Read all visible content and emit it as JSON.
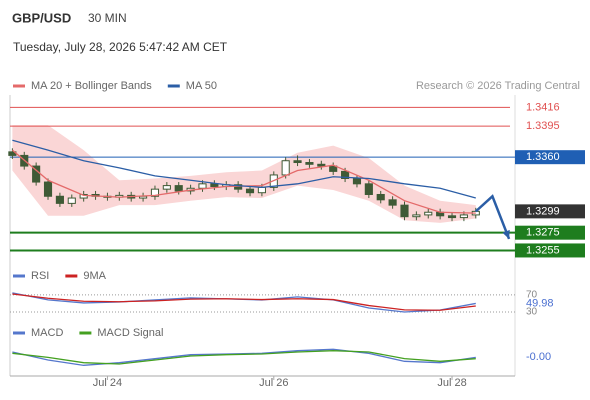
{
  "header": {
    "symbol": "GBP/USD",
    "interval": "30 MIN",
    "timestamp": "Tuesday, July 28, 2026 5:47:42 AM CET",
    "source": "Research © 2026 Trading Central"
  },
  "chart_data": [
    {
      "type": "candlestick",
      "legend": "top-left",
      "candle_color": "#3f5a36",
      "xlim": [
        -0.2,
        42.3
      ],
      "ylim": [
        1.3242,
        1.343
      ],
      "xticks": [
        {
          "value": 8,
          "label": "Jul 24"
        },
        {
          "value": 22,
          "label": "Jul 26"
        },
        {
          "value": 37,
          "label": "Jul 28"
        }
      ],
      "open": [
        1.3366,
        1.3362,
        1.335,
        1.3332,
        1.3316,
        1.3308,
        1.3314,
        1.3318,
        1.3316,
        1.3315,
        1.3317,
        1.3314,
        1.3316,
        1.3324,
        1.3328,
        1.3322,
        1.3325,
        1.333,
        1.3327,
        1.3329,
        1.3324,
        1.332,
        1.3326,
        1.334,
        1.3356,
        1.3354,
        1.3352,
        1.335,
        1.3344,
        1.3336,
        1.333,
        1.3318,
        1.3312,
        1.3306,
        1.3293,
        1.3295,
        1.3298,
        1.3294,
        1.3292,
        1.3295
      ],
      "high": [
        1.337,
        1.3366,
        1.3354,
        1.3336,
        1.332,
        1.3318,
        1.3322,
        1.3322,
        1.332,
        1.3321,
        1.3321,
        1.332,
        1.3328,
        1.3332,
        1.3332,
        1.3329,
        1.3334,
        1.3334,
        1.3333,
        1.3333,
        1.3328,
        1.333,
        1.3344,
        1.336,
        1.3362,
        1.3358,
        1.3356,
        1.3354,
        1.3348,
        1.334,
        1.3334,
        1.3322,
        1.3316,
        1.331,
        1.3299,
        1.3302,
        1.3302,
        1.3298,
        1.3299,
        1.3303
      ],
      "low": [
        1.3358,
        1.3346,
        1.3328,
        1.3312,
        1.3304,
        1.3304,
        1.331,
        1.3312,
        1.3311,
        1.3311,
        1.331,
        1.331,
        1.3312,
        1.332,
        1.3318,
        1.3318,
        1.3321,
        1.3323,
        1.3323,
        1.332,
        1.3316,
        1.3316,
        1.3322,
        1.3336,
        1.335,
        1.3348,
        1.3346,
        1.334,
        1.3332,
        1.3326,
        1.3314,
        1.3308,
        1.3302,
        1.3289,
        1.3289,
        1.3291,
        1.329,
        1.3288,
        1.3288,
        1.3291
      ],
      "close": [
        1.3362,
        1.335,
        1.3332,
        1.3316,
        1.3308,
        1.3314,
        1.3318,
        1.3316,
        1.3315,
        1.3317,
        1.3314,
        1.3316,
        1.3324,
        1.3328,
        1.3322,
        1.3325,
        1.333,
        1.3327,
        1.3329,
        1.3324,
        1.332,
        1.3326,
        1.334,
        1.3356,
        1.3354,
        1.3352,
        1.335,
        1.3344,
        1.3336,
        1.333,
        1.3318,
        1.3312,
        1.3306,
        1.3293,
        1.3295,
        1.3298,
        1.3294,
        1.3292,
        1.3295,
        1.3299
      ],
      "series": [
        {
          "name": "MA 20 + Bollinger Bands",
          "color": "#e46a6a",
          "band_color": "#fad6d6",
          "x": [
            0,
            3,
            6,
            9,
            12,
            15,
            18,
            21,
            24,
            27,
            30,
            33,
            36,
            39
          ],
          "values": [
            1.3368,
            1.3334,
            1.3317,
            1.3315,
            1.3317,
            1.3323,
            1.3327,
            1.3328,
            1.3345,
            1.3351,
            1.3334,
            1.3311,
            1.3298,
            1.3297
          ],
          "upper": [
            1.3396,
            1.3396,
            1.3368,
            1.3334,
            1.3336,
            1.3339,
            1.3343,
            1.3345,
            1.3365,
            1.3373,
            1.3359,
            1.3328,
            1.3311,
            1.3306
          ],
          "lower": [
            1.3345,
            1.3294,
            1.3294,
            1.3306,
            1.3306,
            1.3311,
            1.3315,
            1.3314,
            1.3328,
            1.3323,
            1.3311,
            1.3289,
            1.3286,
            1.3291
          ]
        },
        {
          "name": "MA 50",
          "color": "#2b5ea6",
          "x": [
            0,
            3,
            6,
            9,
            12,
            15,
            18,
            21,
            24,
            27,
            30,
            33,
            36,
            39
          ],
          "values": [
            1.3379,
            1.3368,
            1.3356,
            1.3348,
            1.3339,
            1.3334,
            1.3329,
            1.3326,
            1.333,
            1.3338,
            1.3336,
            1.333,
            1.3325,
            1.3314
          ]
        }
      ],
      "levels": [
        {
          "value": 1.3416,
          "color": "#e05050",
          "kind": "resistance"
        },
        {
          "value": 1.3395,
          "color": "#e05050",
          "kind": "resistance"
        },
        {
          "value": 1.336,
          "label": "1.3360",
          "color": "#1f5fb4",
          "kind": "pivot"
        },
        {
          "value": 1.3299,
          "color": "#333333",
          "kind": "current"
        },
        {
          "value": 1.3275,
          "color": "#1e7d1e",
          "kind": "support"
        },
        {
          "value": 1.3255,
          "color": "#1e7d1e",
          "kind": "support"
        }
      ],
      "forecast": {
        "color": "#2b5ea6",
        "x": [
          39,
          40.4,
          41.8
        ],
        "values": [
          1.3299,
          1.3316,
          1.3268
        ]
      }
    },
    {
      "type": "line",
      "legend": "top-left",
      "ylim": [
        16,
        86
      ],
      "yticks": [
        70,
        30
      ],
      "current": 49.98,
      "current_color": "#4a6fd0",
      "series": [
        {
          "name": "RSI",
          "color": "#5577cc",
          "x": [
            0,
            3,
            6,
            9,
            12,
            15,
            18,
            21,
            24,
            27,
            30,
            33,
            36,
            39
          ],
          "values": [
            74.7,
            58.2,
            51.2,
            53.5,
            58.2,
            62.9,
            60.6,
            58.2,
            65.3,
            58.2,
            39.4,
            30,
            34.7,
            49.98
          ]
        },
        {
          "name": "9MA",
          "color": "#cc2222",
          "x": [
            0,
            3,
            6,
            9,
            12,
            15,
            18,
            21,
            24,
            27,
            30,
            33,
            36,
            39
          ],
          "values": [
            72,
            62,
            55,
            54,
            56,
            60,
            61,
            59,
            61,
            59,
            45,
            35,
            34,
            44
          ]
        }
      ]
    },
    {
      "type": "line",
      "legend": "top-left",
      "ylim": [
        -0.0012,
        0.0012
      ],
      "current": {
        "value": -0.0001,
        "label": "-0.00"
      },
      "current_color": "#4a6fd0",
      "series": [
        {
          "name": "MACD",
          "color": "#5577cc",
          "x": [
            0,
            3,
            6,
            9,
            12,
            15,
            18,
            21,
            24,
            27,
            30,
            33,
            36,
            39
          ],
          "values": [
            0.0003,
            -0.0003,
            -0.0007,
            -0.0005,
            -0.0002,
            0.0001,
            0.00015,
            0.0002,
            0.0004,
            0.0005,
            0.0002,
            -0.0004,
            -0.0005,
            -0.0001
          ]
        },
        {
          "name": "MACD Signal",
          "color": "#44a020",
          "x": [
            0,
            3,
            6,
            9,
            12,
            15,
            18,
            21,
            24,
            27,
            30,
            33,
            36,
            39
          ],
          "values": [
            0.0002,
            -0.0001,
            -0.0005,
            -0.0006,
            -0.0003,
            0,
            0.0001,
            0.00015,
            0.0003,
            0.0004,
            0.0003,
            -0.0002,
            -0.0004,
            -0.0002
          ]
        }
      ]
    }
  ]
}
